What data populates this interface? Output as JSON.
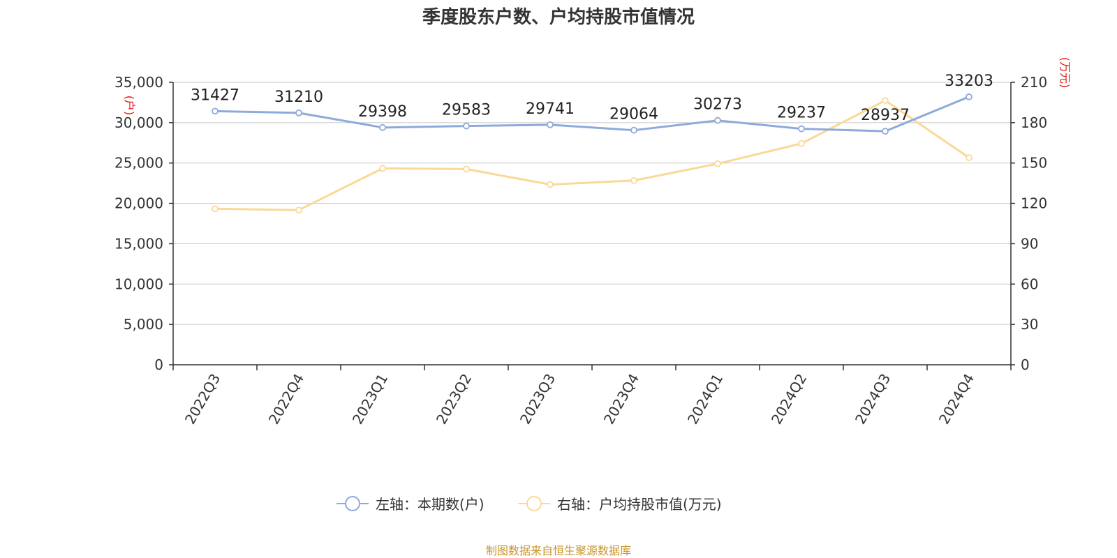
{
  "chart_data": {
    "type": "line",
    "title": "季度股东户数、户均持股市值情况",
    "categories": [
      "2022Q3",
      "2022Q4",
      "2023Q1",
      "2023Q2",
      "2023Q3",
      "2023Q4",
      "2024Q1",
      "2024Q2",
      "2024Q3",
      "2024Q4"
    ],
    "series": [
      {
        "name": "左轴：本期数(户)",
        "axis": "left",
        "color": "#8eaadb",
        "values": [
          31427,
          31210,
          29398,
          29583,
          29741,
          29064,
          30273,
          29237,
          28937,
          33203
        ],
        "labels": [
          "31427",
          "31210",
          "29398",
          "29583",
          "29741",
          "29064",
          "30273",
          "29237",
          "28937",
          "33203"
        ]
      },
      {
        "name": "右轴：户均持股市值(万元)",
        "axis": "right",
        "color": "#fad996",
        "values": [
          116,
          115,
          146,
          145.5,
          134,
          137,
          149.5,
          164.5,
          196.5,
          154
        ]
      }
    ],
    "left_axis": {
      "unit": "(户)",
      "min": 0,
      "max": 35000,
      "ticks": [
        0,
        5000,
        10000,
        15000,
        20000,
        25000,
        30000,
        35000
      ],
      "tick_labels": [
        "0",
        "5,000",
        "10,000",
        "15,000",
        "20,000",
        "25,000",
        "30,000",
        "35,000"
      ]
    },
    "right_axis": {
      "unit": "(万元)",
      "min": 0,
      "max": 210,
      "ticks": [
        0,
        30,
        60,
        90,
        120,
        150,
        180,
        210
      ],
      "tick_labels": [
        "0",
        "30",
        "60",
        "90",
        "120",
        "150",
        "180",
        "210"
      ]
    },
    "grid": true,
    "legend_position": "bottom"
  },
  "source": "制图数据来自恒生聚源数据库"
}
